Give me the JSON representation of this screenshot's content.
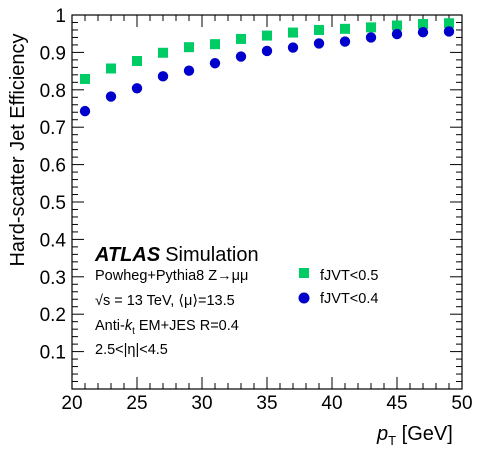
{
  "chart_data": {
    "type": "scatter",
    "xlabel_main": "p",
    "xlabel_sub": "T",
    "xlabel_unit": " [GeV]",
    "ylabel": "Hard-scatter Jet Efficiency",
    "xlim": [
      20,
      50
    ],
    "ylim": [
      0,
      1
    ],
    "x_ticks": [
      20,
      25,
      30,
      35,
      40,
      45,
      50
    ],
    "y_ticks": [
      0.1,
      0.2,
      0.3,
      0.4,
      0.5,
      0.6,
      0.7,
      0.8,
      0.9,
      1
    ],
    "y_tick_labels": [
      "0.1",
      "0.2",
      "0.3",
      "0.4",
      "0.5",
      "0.6",
      "0.7",
      "0.8",
      "0.9",
      "1"
    ],
    "x": [
      21,
      23,
      25,
      27,
      29,
      31,
      33,
      35,
      37,
      39,
      41,
      43,
      45,
      47,
      49
    ],
    "series": [
      {
        "name": "fJVT<0.5",
        "marker": "square",
        "color": "#00cc66",
        "values": [
          0.829,
          0.857,
          0.877,
          0.899,
          0.914,
          0.922,
          0.936,
          0.945,
          0.953,
          0.96,
          0.963,
          0.967,
          0.972,
          0.976,
          0.978
        ]
      },
      {
        "name": "fJVT<0.4",
        "marker": "circle",
        "color": "#0000cc",
        "values": [
          0.743,
          0.782,
          0.804,
          0.836,
          0.851,
          0.871,
          0.889,
          0.904,
          0.913,
          0.924,
          0.929,
          0.94,
          0.949,
          0.954,
          0.956
        ]
      }
    ],
    "legend_placement": "lower-right",
    "annotations": {
      "atlas": "ATLAS",
      "simulation": "Simulation",
      "line1": "Powheg+Pythia8 Z→μμ",
      "line2": "√s = 13 TeV, ⟨μ⟩=13.5",
      "line3_prefix": "Anti-",
      "line3_k": "k",
      "line3_sub": "t",
      "line3_suffix": " EM+JES R=0.4",
      "line4": "2.5<|η|<4.5"
    }
  }
}
